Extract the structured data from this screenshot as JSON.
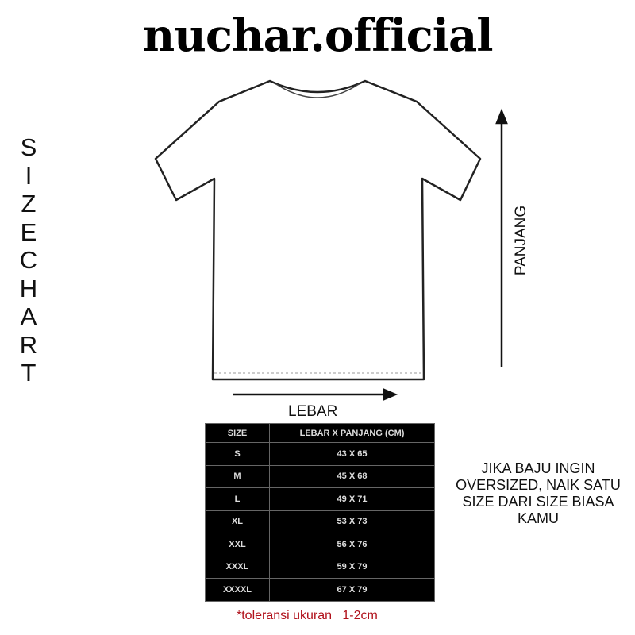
{
  "brand": "nuchar.official",
  "side_label": [
    "S",
    "I",
    "Z",
    "E",
    "C",
    "H",
    "A",
    "R",
    "T"
  ],
  "height_label": "PANJANG",
  "width_label": "LEBAR",
  "table": {
    "headers": [
      "SIZE",
      "LEBAR X PANJANG (CM)"
    ],
    "rows": [
      [
        "S",
        "43 X 65"
      ],
      [
        "M",
        "45 X 68"
      ],
      [
        "L",
        "49 X 71"
      ],
      [
        "XL",
        "53 X 73"
      ],
      [
        "XXL",
        "56 X 76"
      ],
      [
        "XXXL",
        "59 X 79"
      ],
      [
        "XXXXL",
        "67 X 79"
      ]
    ]
  },
  "tolerance_note": "*toleransi ukuran   1-2cm",
  "oversize_note": "JIKA BAJU INGIN OVERSIZED, NAIK SATU SIZE DARI SIZE BIASA KAMU",
  "colors": {
    "note": "#b0101a",
    "table_bg": "#000000"
  }
}
